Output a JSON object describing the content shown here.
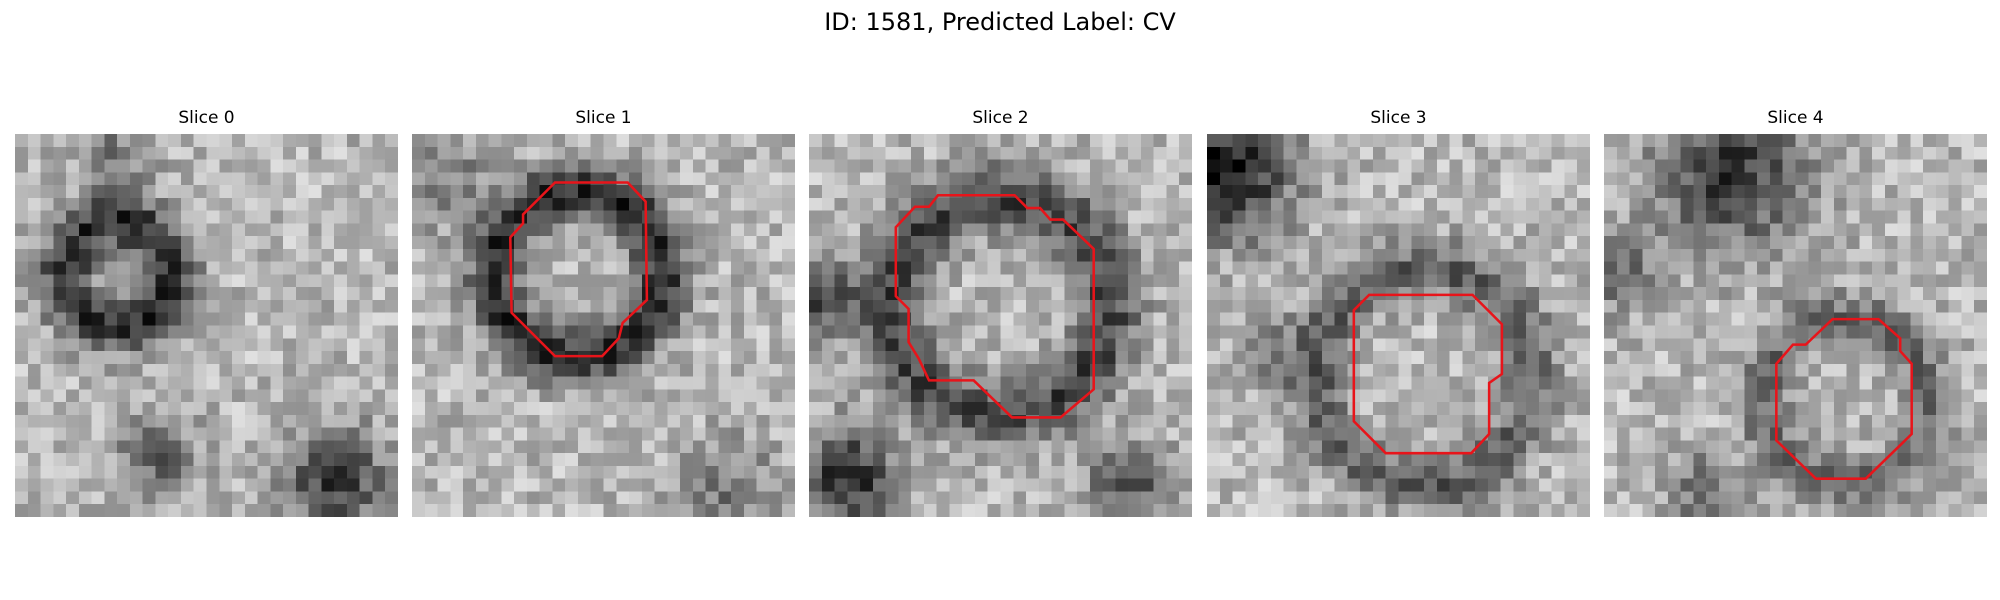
{
  "title": "ID: 1581, Predicted Label: CV",
  "panels": [
    {
      "title": "Slice 0"
    },
    {
      "title": "Slice 1"
    },
    {
      "title": "Slice 2"
    },
    {
      "title": "Slice 3"
    },
    {
      "title": "Slice 4"
    }
  ]
}
